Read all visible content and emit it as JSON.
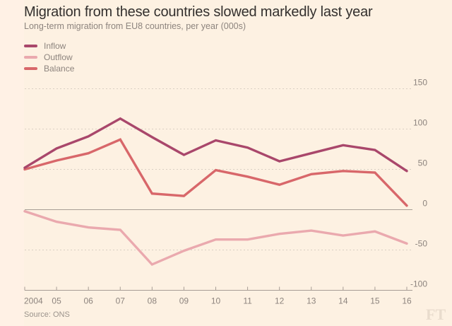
{
  "title": "Migration from these countries slowed markedly last year",
  "subtitle": "Long-term migration from EU8 countries, per year (000s)",
  "source": "Source: ONS",
  "logo": "FT",
  "colors": {
    "inflow": "#a9476b",
    "outflow": "#eaa9ae",
    "balance": "#d8676a",
    "grid": "#d9cfc3",
    "axis": "#a79d95"
  },
  "legend": [
    {
      "label": "Inflow",
      "series": "inflow"
    },
    {
      "label": "Outflow",
      "series": "outflow"
    },
    {
      "label": "Balance",
      "series": "balance"
    }
  ],
  "chart_data": {
    "type": "line",
    "title": "Migration from these countries slowed markedly last year",
    "subtitle": "Long-term migration from EU8 countries, per year (000s)",
    "xlabel": "",
    "ylabel": "",
    "x": [
      2004,
      2005,
      2006,
      2007,
      2008,
      2009,
      2010,
      2011,
      2012,
      2013,
      2014,
      2015,
      2016
    ],
    "x_tick_labels": [
      "2004",
      "05",
      "06",
      "07",
      "08",
      "09",
      "10",
      "11",
      "12",
      "13",
      "14",
      "15",
      "16"
    ],
    "y_ticks": [
      150,
      100,
      50,
      0,
      -50,
      -100
    ],
    "y_tick_labels": [
      "150",
      "100",
      "50",
      "0",
      "-50",
      "-100"
    ],
    "ylim": [
      -100,
      150
    ],
    "grid": true,
    "legend_position": "top-left",
    "series": [
      {
        "name": "Inflow",
        "key": "inflow",
        "values": [
          52,
          76,
          91,
          113,
          90,
          68,
          86,
          77,
          60,
          70,
          80,
          74,
          48
        ]
      },
      {
        "name": "Outflow",
        "key": "outflow",
        "values": [
          -2,
          -15,
          -22,
          -25,
          -68,
          -51,
          -37,
          -37,
          -30,
          -26,
          -32,
          -27,
          -42
        ]
      },
      {
        "name": "Balance",
        "key": "balance",
        "values": [
          50,
          61,
          70,
          87,
          20,
          17,
          49,
          41,
          31,
          44,
          48,
          46,
          5
        ]
      }
    ]
  }
}
